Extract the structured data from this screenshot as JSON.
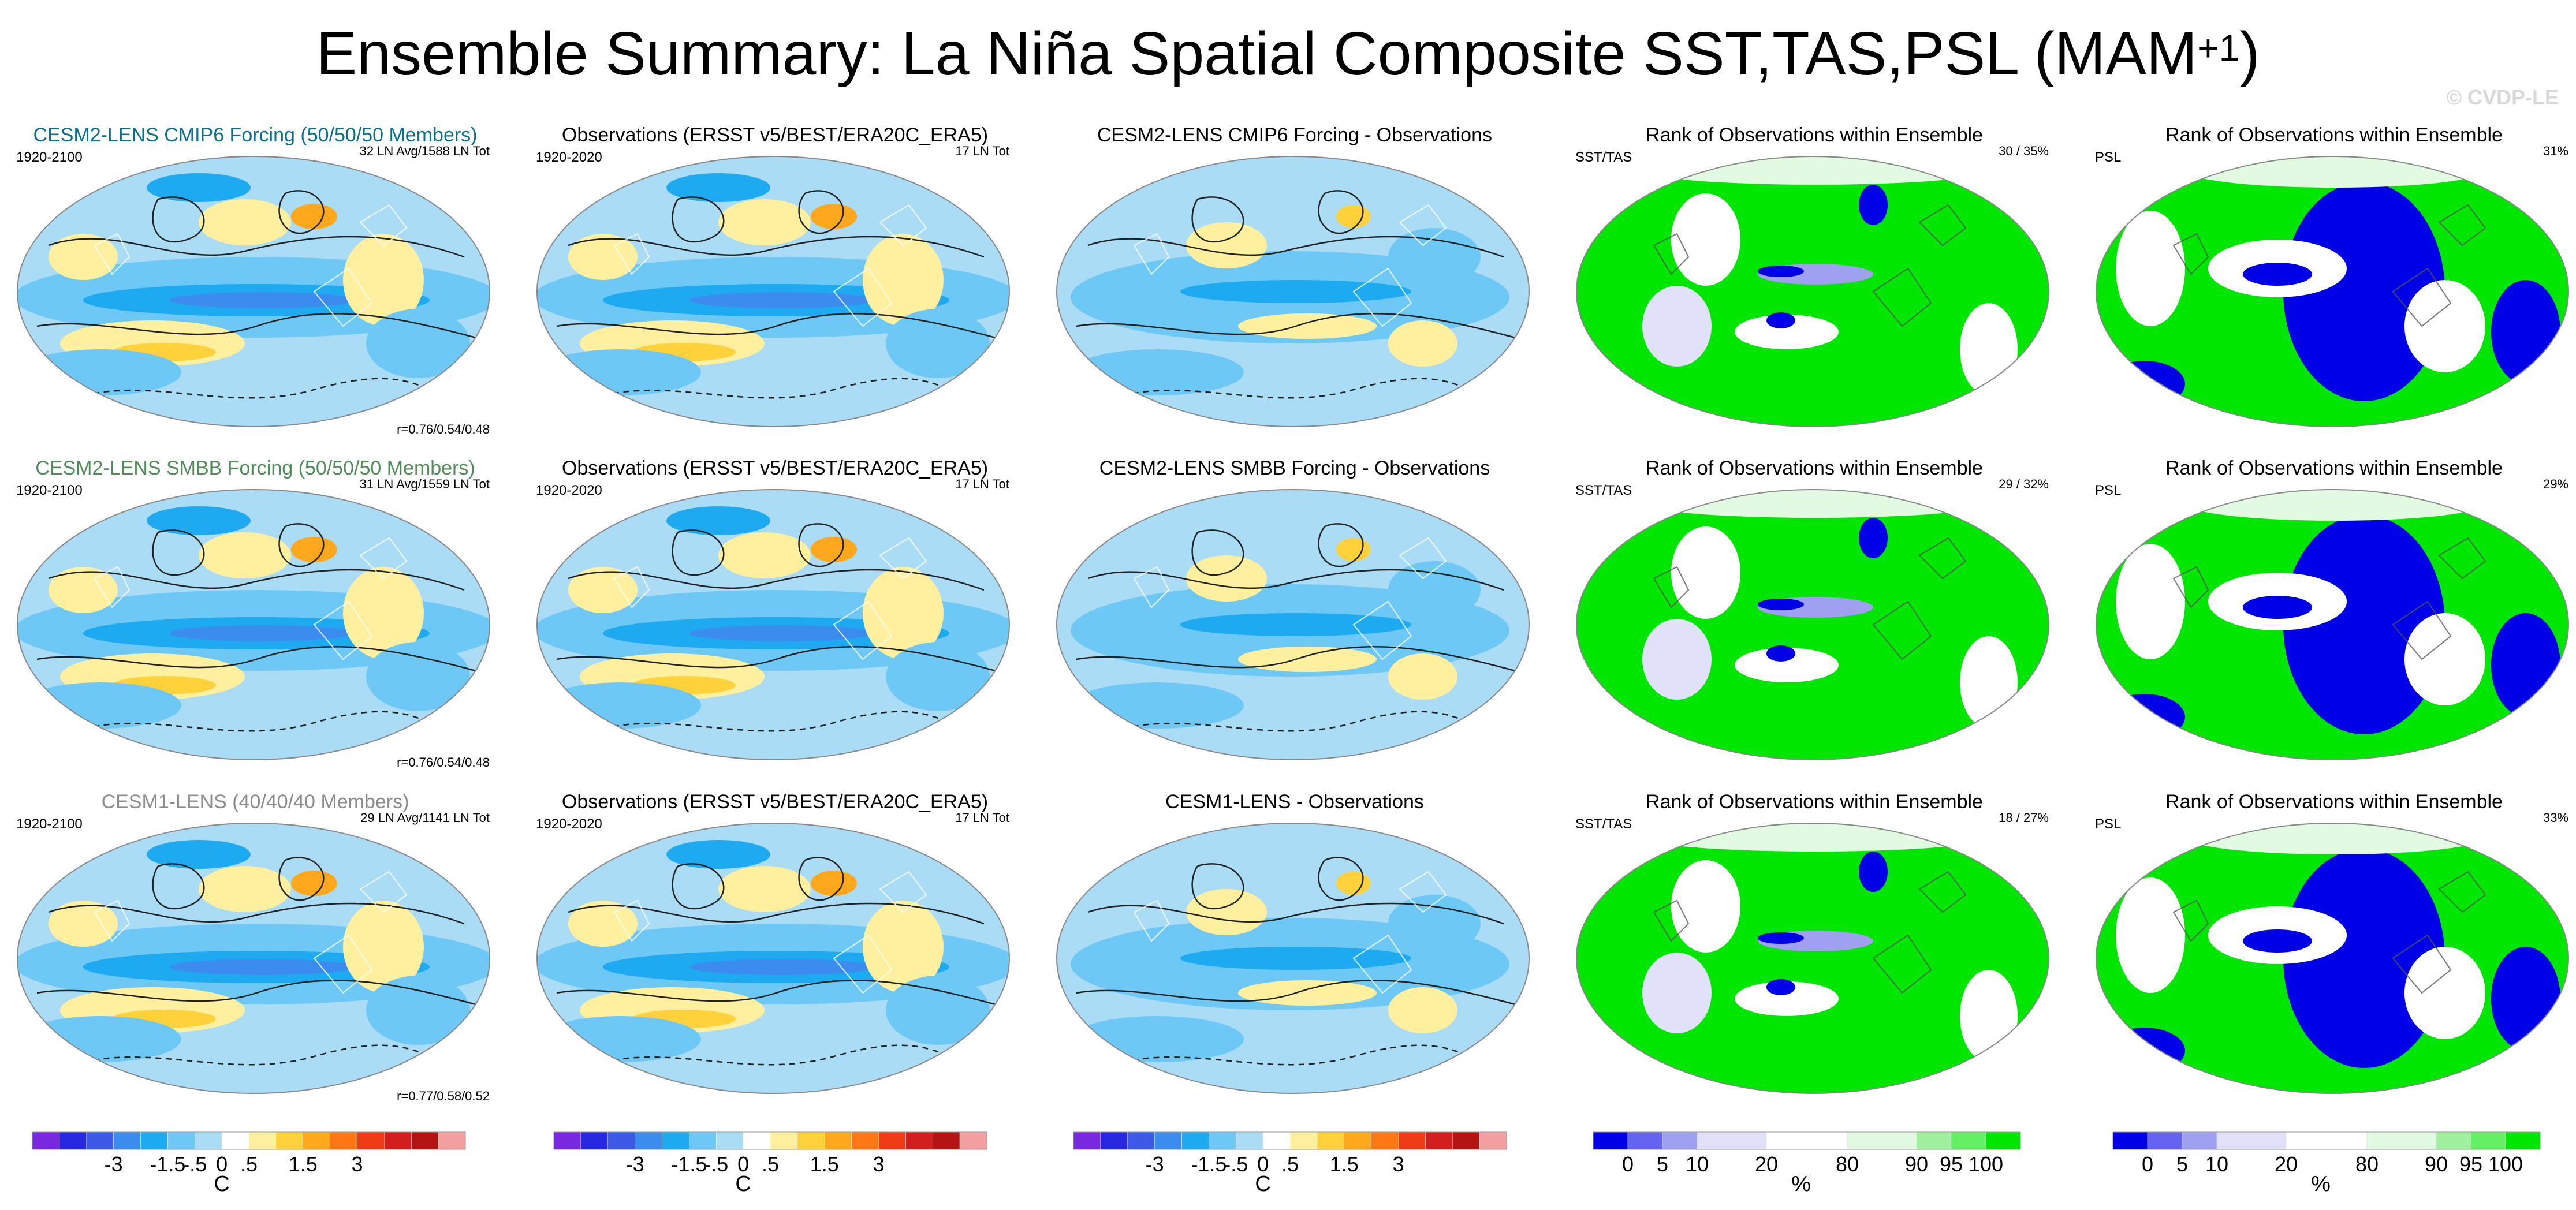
{
  "title": "Ensemble Summary: La Niña Spatial Composite SST,TAS,PSL (MAM",
  "title_sup": "+1",
  "title_close": ")",
  "watermark": "© CVDP-LE",
  "colors": {
    "temp_palette": [
      "#7a28e0",
      "#2828e0",
      "#3c5ae6",
      "#3c8cf0",
      "#1eaaf0",
      "#6ec8f5",
      "#aadcf5",
      "#ffffff",
      "#fff0a0",
      "#ffd23c",
      "#ffa81e",
      "#ff7814",
      "#f03c14",
      "#d21e1e",
      "#b41414",
      "#f5a0a0"
    ],
    "rank_palette": [
      "#0000e6",
      "#6464f0",
      "#a0a0f0",
      "#e1e1fa",
      "#ffffff",
      "#e1fae1",
      "#a0f0a0",
      "#64f064",
      "#00e600"
    ],
    "model_title_colors": [
      "#0a6e8c",
      "#4f8c5a",
      "#8c8c8c"
    ]
  },
  "rows": [
    {
      "model_title": "CESM2-LENS CMIP6 Forcing (50/50/50 Members)",
      "model_period": "1920-2100",
      "model_count": "32 LN Avg/1588 LN Tot",
      "model_corr": "r=0.76/0.54/0.48",
      "obs_title": "Observations (ERSST v5/BEST/ERA20C_ERA5)",
      "obs_period": "1920-2020",
      "obs_count": "17 LN Tot",
      "diff_title": "CESM2-LENS CMIP6 Forcing - Observations",
      "rank_title": "Rank of Observations within Ensemble",
      "rank_sst_label": "SST/TAS",
      "rank_sst_pct": "30 /  35%",
      "rank_psl_label": "PSL",
      "rank_psl_pct": "31%"
    },
    {
      "model_title": "CESM2-LENS SMBB Forcing (50/50/50 Members)",
      "model_period": "1920-2100",
      "model_count": "31 LN Avg/1559 LN Tot",
      "model_corr": "r=0.76/0.54/0.48",
      "obs_title": "Observations (ERSST v5/BEST/ERA20C_ERA5)",
      "obs_period": "1920-2020",
      "obs_count": "17 LN Tot",
      "diff_title": "CESM2-LENS SMBB Forcing - Observations",
      "rank_title": "Rank of Observations within Ensemble",
      "rank_sst_label": "SST/TAS",
      "rank_sst_pct": "29 /  32%",
      "rank_psl_label": "PSL",
      "rank_psl_pct": "29%"
    },
    {
      "model_title": "CESM1-LENS (40/40/40 Members)",
      "model_period": "1920-2100",
      "model_count": "29 LN Avg/1141 LN Tot",
      "model_corr": "r=0.77/0.58/0.52",
      "obs_title": "Observations (ERSST v5/BEST/ERA20C_ERA5)",
      "obs_period": "1920-2020",
      "obs_count": "17 LN Tot",
      "diff_title": "CESM1-LENS - Observations",
      "rank_title": "Rank of Observations within Ensemble",
      "rank_sst_label": "SST/TAS",
      "rank_sst_pct": "18 /  27%",
      "rank_psl_label": "PSL",
      "rank_psl_pct": "33%"
    }
  ],
  "colorbars": {
    "temp": {
      "labels": [
        "-3",
        "-1.5",
        "-.5",
        "0",
        ".5",
        "1.5",
        "3"
      ],
      "unit": "C"
    },
    "rank": {
      "labels": [
        "0",
        "5",
        "10",
        "20",
        "80",
        "90",
        "95",
        "100"
      ],
      "unit": "%"
    }
  }
}
